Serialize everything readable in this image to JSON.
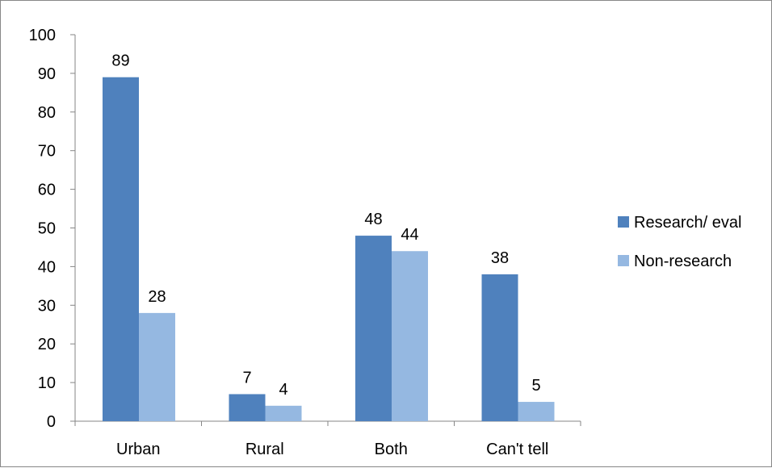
{
  "chart_data": {
    "type": "bar",
    "categories": [
      "Urban",
      "Rural",
      "Both",
      "Can't tell"
    ],
    "series": [
      {
        "name": "Research/ eval",
        "values": [
          89,
          7,
          48,
          38
        ],
        "color": "#4F81BD"
      },
      {
        "name": "Non-research",
        "values": [
          28,
          4,
          44,
          5
        ],
        "color": "#95B8E1"
      }
    ],
    "ylim": [
      0,
      100
    ],
    "yticks": [
      0,
      10,
      20,
      30,
      40,
      50,
      60,
      70,
      80,
      90,
      100
    ],
    "grid": false,
    "legend_position": "right",
    "data_labels": true
  }
}
